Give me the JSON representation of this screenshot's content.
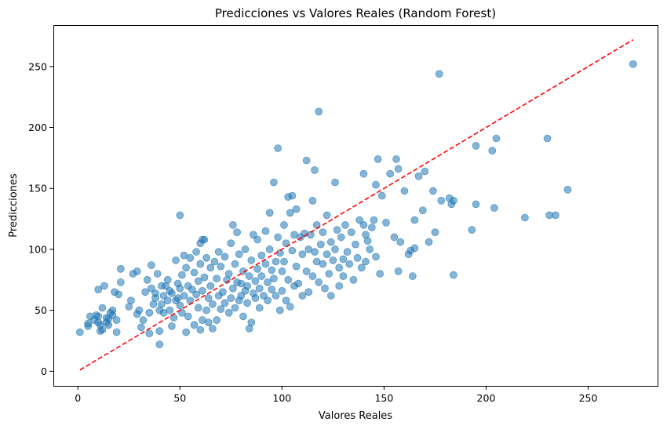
{
  "chart_data": {
    "type": "scatter",
    "title": "Predicciones vs Valores Reales (Random Forest)",
    "xlabel": "Valores Reales",
    "ylabel": "Predicciones",
    "xlim": [
      -12,
      284
    ],
    "ylim": [
      -12,
      284
    ],
    "xticks": [
      0,
      50,
      100,
      150,
      200,
      250
    ],
    "yticks": [
      0,
      50,
      100,
      150,
      200,
      250
    ],
    "grid": false,
    "legend": "none",
    "point_color": "#1f77b4",
    "point_alpha": 0.55,
    "reference_line": {
      "from": [
        1,
        1
      ],
      "to": [
        272,
        272
      ],
      "color": "#ff0000",
      "style": "dashed"
    },
    "points": [
      [
        1,
        32
      ],
      [
        5,
        37
      ],
      [
        5,
        39
      ],
      [
        6,
        45
      ],
      [
        8,
        42
      ],
      [
        9,
        46
      ],
      [
        10,
        40
      ],
      [
        10,
        45
      ],
      [
        11,
        33
      ],
      [
        11,
        38
      ],
      [
        12,
        34
      ],
      [
        12,
        52
      ],
      [
        14,
        40
      ],
      [
        14,
        44
      ],
      [
        15,
        38
      ],
      [
        15,
        43
      ],
      [
        16,
        48
      ],
      [
        17,
        50
      ],
      [
        17,
        46
      ],
      [
        19,
        32
      ],
      [
        19,
        42
      ],
      [
        20,
        63
      ],
      [
        21,
        73
      ],
      [
        21,
        84
      ],
      [
        10,
        67
      ],
      [
        13,
        70
      ],
      [
        18,
        65
      ],
      [
        25,
        53
      ],
      [
        26,
        58
      ],
      [
        27,
        80
      ],
      [
        29,
        82
      ],
      [
        29,
        47
      ],
      [
        30,
        50
      ],
      [
        31,
        36
      ],
      [
        32,
        42
      ],
      [
        33,
        65
      ],
      [
        34,
        75
      ],
      [
        35,
        48
      ],
      [
        35,
        31
      ],
      [
        36,
        68
      ],
      [
        36,
        87
      ],
      [
        37,
        55
      ],
      [
        38,
        60
      ],
      [
        38,
        64
      ],
      [
        39,
        80
      ],
      [
        40,
        50
      ],
      [
        40,
        22
      ],
      [
        40,
        33
      ],
      [
        41,
        55
      ],
      [
        41,
        70
      ],
      [
        42,
        48
      ],
      [
        42,
        62
      ],
      [
        43,
        70
      ],
      [
        44,
        58
      ],
      [
        44,
        75
      ],
      [
        45,
        66
      ],
      [
        45,
        50
      ],
      [
        46,
        37
      ],
      [
        46,
        64
      ],
      [
        47,
        44
      ],
      [
        48,
        58
      ],
      [
        48,
        91
      ],
      [
        49,
        60
      ],
      [
        49,
        72
      ],
      [
        50,
        128
      ],
      [
        50,
        54
      ],
      [
        50,
        68
      ],
      [
        51,
        48
      ],
      [
        51,
        79
      ],
      [
        52,
        95
      ],
      [
        52,
        62
      ],
      [
        53,
        32
      ],
      [
        53,
        85
      ],
      [
        54,
        45
      ],
      [
        54,
        70
      ],
      [
        55,
        58
      ],
      [
        55,
        93
      ],
      [
        56,
        67
      ],
      [
        57,
        38
      ],
      [
        57,
        81
      ],
      [
        58,
        63
      ],
      [
        58,
        98
      ],
      [
        59,
        52
      ],
      [
        59,
        74
      ],
      [
        60,
        105
      ],
      [
        60,
        34
      ],
      [
        60,
        88
      ],
      [
        61,
        108
      ],
      [
        61,
        42
      ],
      [
        61,
        66
      ],
      [
        62,
        108
      ],
      [
        62,
        77
      ],
      [
        63,
        50
      ],
      [
        63,
        93
      ],
      [
        64,
        40
      ],
      [
        64,
        60
      ],
      [
        65,
        85
      ],
      [
        65,
        70
      ],
      [
        66,
        35
      ],
      [
        66,
        55
      ],
      [
        67,
        90
      ],
      [
        68,
        42
      ],
      [
        68,
        76
      ],
      [
        69,
        62
      ],
      [
        69,
        98
      ],
      [
        70,
        51
      ],
      [
        70,
        86
      ],
      [
        71,
        65
      ],
      [
        72,
        56
      ],
      [
        72,
        94
      ],
      [
        73,
        75
      ],
      [
        74,
        48
      ],
      [
        74,
        80
      ],
      [
        75,
        60
      ],
      [
        75,
        105
      ],
      [
        76,
        68
      ],
      [
        76,
        120
      ],
      [
        77,
        52
      ],
      [
        77,
        88
      ],
      [
        78,
        73
      ],
      [
        78,
        114
      ],
      [
        79,
        58
      ],
      [
        79,
        96
      ],
      [
        80,
        62
      ],
      [
        80,
        72
      ],
      [
        81,
        45
      ],
      [
        81,
        82
      ],
      [
        82,
        66
      ],
      [
        82,
        100
      ],
      [
        83,
        70
      ],
      [
        83,
        56
      ],
      [
        84,
        35
      ],
      [
        84,
        78
      ],
      [
        85,
        40
      ],
      [
        85,
        91
      ],
      [
        86,
        64
      ],
      [
        86,
        112
      ],
      [
        87,
        74
      ],
      [
        87,
        60
      ],
      [
        88,
        84
      ],
      [
        88,
        108
      ],
      [
        89,
        68
      ],
      [
        89,
        52
      ],
      [
        90,
        78
      ],
      [
        90,
        95
      ],
      [
        91,
        62
      ],
      [
        92,
        88
      ],
      [
        92,
        115
      ],
      [
        93,
        73
      ],
      [
        93,
        58
      ],
      [
        94,
        100
      ],
      [
        94,
        130
      ],
      [
        95,
        67
      ],
      [
        95,
        83
      ],
      [
        96,
        155
      ],
      [
        96,
        76
      ],
      [
        97,
        90
      ],
      [
        97,
        62
      ],
      [
        98,
        183
      ],
      [
        98,
        110
      ],
      [
        99,
        50
      ],
      [
        99,
        97
      ],
      [
        100,
        66
      ],
      [
        100,
        82
      ],
      [
        101,
        120
      ],
      [
        101,
        90
      ],
      [
        102,
        58
      ],
      [
        102,
        105
      ],
      [
        103,
        143
      ],
      [
        103,
        75
      ],
      [
        104,
        130
      ],
      [
        104,
        53
      ],
      [
        105,
        144
      ],
      [
        105,
        99
      ],
      [
        106,
        70
      ],
      [
        106,
        112
      ],
      [
        107,
        133
      ],
      [
        107,
        86
      ],
      [
        108,
        72
      ],
      [
        109,
        110
      ],
      [
        110,
        96
      ],
      [
        110,
        62
      ],
      [
        111,
        113
      ],
      [
        112,
        173
      ],
      [
        112,
        82
      ],
      [
        113,
        100
      ],
      [
        113,
        65
      ],
      [
        114,
        112
      ],
      [
        115,
        140
      ],
      [
        115,
        78
      ],
      [
        116,
        165
      ],
      [
        116,
        98
      ],
      [
        117,
        90
      ],
      [
        117,
        120
      ],
      [
        118,
        213
      ],
      [
        118,
        73
      ],
      [
        119,
        104
      ],
      [
        120,
        88
      ],
      [
        120,
        114
      ],
      [
        121,
        68
      ],
      [
        122,
        96
      ],
      [
        122,
        128
      ],
      [
        123,
        80
      ],
      [
        124,
        106
      ],
      [
        124,
        62
      ],
      [
        125,
        91
      ],
      [
        126,
        155
      ],
      [
        126,
        100
      ],
      [
        127,
        116
      ],
      [
        128,
        85
      ],
      [
        128,
        70
      ],
      [
        129,
        110
      ],
      [
        130,
        92
      ],
      [
        130,
        78
      ],
      [
        131,
        120
      ],
      [
        132,
        98
      ],
      [
        133,
        88
      ],
      [
        134,
        114
      ],
      [
        135,
        75
      ],
      [
        136,
        104
      ],
      [
        137,
        93
      ],
      [
        138,
        124
      ],
      [
        139,
        85
      ],
      [
        140,
        120
      ],
      [
        140,
        162
      ],
      [
        141,
        112
      ],
      [
        141,
        90
      ],
      [
        142,
        107
      ],
      [
        143,
        100
      ],
      [
        144,
        118
      ],
      [
        145,
        124
      ],
      [
        146,
        94
      ],
      [
        146,
        153
      ],
      [
        147,
        174
      ],
      [
        148,
        80
      ],
      [
        149,
        144
      ],
      [
        151,
        122
      ],
      [
        153,
        162
      ],
      [
        155,
        110
      ],
      [
        156,
        174
      ],
      [
        157,
        82
      ],
      [
        157,
        166
      ],
      [
        158,
        106
      ],
      [
        160,
        148
      ],
      [
        162,
        96
      ],
      [
        163,
        99
      ],
      [
        164,
        78
      ],
      [
        165,
        124
      ],
      [
        165,
        101
      ],
      [
        167,
        160
      ],
      [
        169,
        132
      ],
      [
        170,
        164
      ],
      [
        172,
        106
      ],
      [
        174,
        148
      ],
      [
        175,
        114
      ],
      [
        177,
        244
      ],
      [
        178,
        140
      ],
      [
        182,
        142
      ],
      [
        183,
        137
      ],
      [
        184,
        140
      ],
      [
        184,
        79
      ],
      [
        193,
        116
      ],
      [
        195,
        185
      ],
      [
        195,
        137
      ],
      [
        203,
        181
      ],
      [
        204,
        134
      ],
      [
        205,
        191
      ],
      [
        219,
        126
      ],
      [
        230,
        191
      ],
      [
        231,
        128
      ],
      [
        234,
        128
      ],
      [
        240,
        149
      ],
      [
        272,
        252
      ]
    ]
  }
}
